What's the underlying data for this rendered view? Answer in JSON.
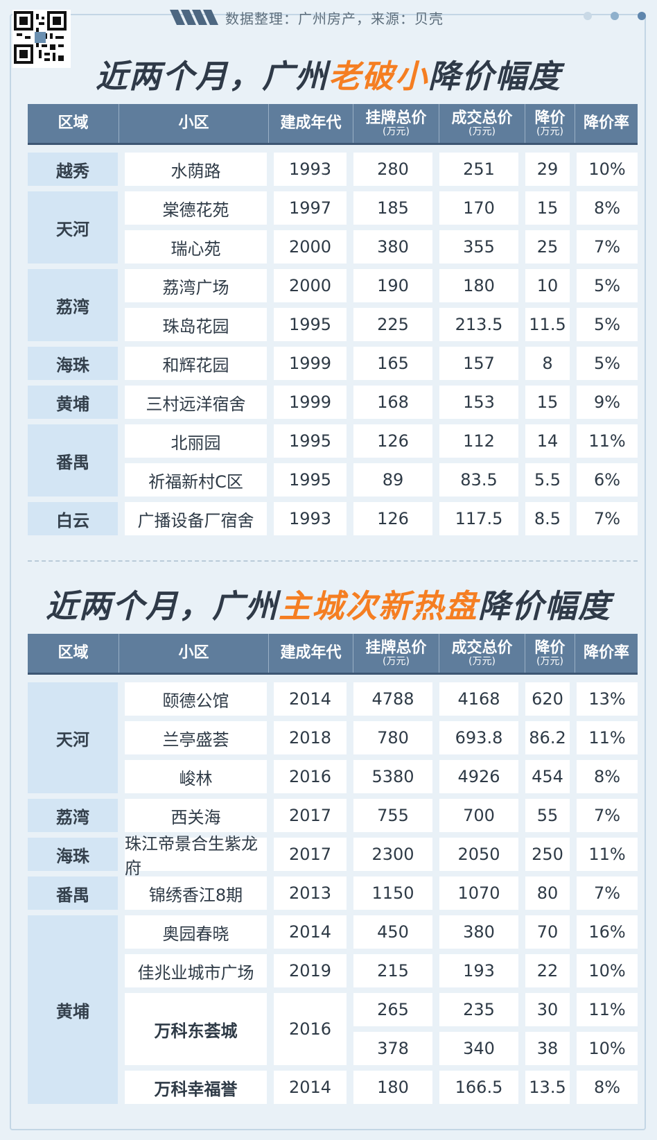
{
  "header": {
    "source_text": "数据整理：广州房产，来源：贝壳",
    "dot_colors": [
      "#c9d9e6",
      "#8fb0cc",
      "#5f86ad"
    ]
  },
  "columns": [
    {
      "main": "区域",
      "sub": ""
    },
    {
      "main": "小区",
      "sub": ""
    },
    {
      "main": "建成年代",
      "sub": ""
    },
    {
      "main": "挂牌总价",
      "sub": "(万元)"
    },
    {
      "main": "成交总价",
      "sub": "(万元)"
    },
    {
      "main": "降价",
      "sub": "(万元)"
    },
    {
      "main": "降价率",
      "sub": ""
    }
  ],
  "table1": {
    "title_pre": "近两个月，广州",
    "title_highlight": "老破小",
    "title_post": "降价幅度",
    "regions": [
      "越秀",
      "天河",
      "荔湾",
      "海珠",
      "黄埔",
      "番禺",
      "白云"
    ],
    "rows": [
      [
        "水荫路",
        "1993",
        "280",
        "251",
        "29",
        "10%"
      ],
      [
        "棠德花苑",
        "1997",
        "185",
        "170",
        "15",
        "8%"
      ],
      [
        "瑞心苑",
        "2000",
        "380",
        "355",
        "25",
        "7%"
      ],
      [
        "荔湾广场",
        "2000",
        "190",
        "180",
        "10",
        "5%"
      ],
      [
        "珠岛花园",
        "1995",
        "225",
        "213.5",
        "11.5",
        "5%"
      ],
      [
        "和辉花园",
        "1999",
        "165",
        "157",
        "8",
        "5%"
      ],
      [
        "三村远洋宿舍",
        "1999",
        "168",
        "153",
        "15",
        "9%"
      ],
      [
        "北丽园",
        "1995",
        "126",
        "112",
        "14",
        "11%"
      ],
      [
        "祈福新村C区",
        "1995",
        "89",
        "83.5",
        "5.5",
        "6%"
      ],
      [
        "广播设备厂宿舍",
        "1993",
        "126",
        "117.5",
        "8.5",
        "7%"
      ]
    ]
  },
  "table2": {
    "title_pre": "近两个月，广州",
    "title_highlight": "主城次新热盘",
    "title_post": "降价幅度",
    "regions": [
      "天河",
      "荔湾",
      "海珠",
      "番禺",
      "黄埔"
    ],
    "rows": [
      [
        "颐德公馆",
        "2014",
        "4788",
        "4168",
        "620",
        "13%"
      ],
      [
        "兰亭盛荟",
        "2018",
        "780",
        "693.8",
        "86.2",
        "11%"
      ],
      [
        "峻林",
        "2016",
        "5380",
        "4926",
        "454",
        "8%"
      ],
      [
        "西关海",
        "2017",
        "755",
        "700",
        "55",
        "7%"
      ],
      [
        "珠江帝景合生紫龙府",
        "2017",
        "2300",
        "2050",
        "250",
        "11%"
      ],
      [
        "锦绣香江8期",
        "2013",
        "1150",
        "1070",
        "80",
        "7%"
      ],
      [
        "奥园春晓",
        "2014",
        "450",
        "380",
        "70",
        "16%"
      ],
      [
        "佳兆业城市广场",
        "2019",
        "215",
        "193",
        "22",
        "10%"
      ],
      [
        "万科东荟城",
        "2016",
        "265",
        "235",
        "30",
        "11%"
      ],
      [
        "",
        "",
        "378",
        "340",
        "38",
        "10%"
      ],
      [
        "万科幸福誉",
        "2014",
        "180",
        "166.5",
        "13.5",
        "8%"
      ]
    ]
  }
}
